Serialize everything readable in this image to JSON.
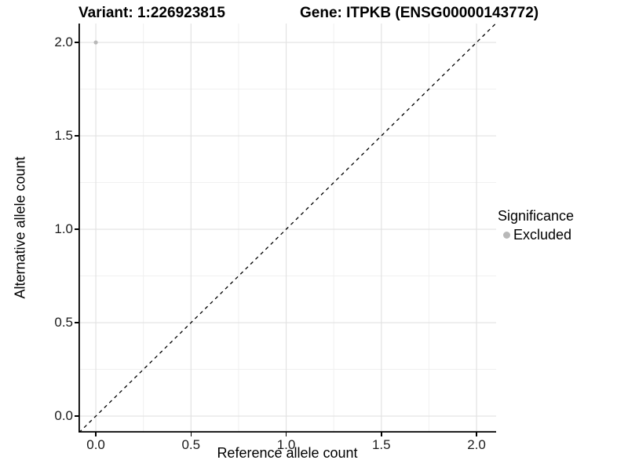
{
  "chart_data": {
    "type": "scatter",
    "title_left": "Variant: 1:226923815",
    "title_right": "Gene: ITPKB (ENSG00000143772)",
    "xlabel": "Reference allele count",
    "ylabel": "Alternative allele count",
    "xlim": [
      -0.091,
      2.103
    ],
    "ylim": [
      -0.088,
      2.101
    ],
    "x_ticks": [
      0.0,
      0.5,
      1.0,
      1.5,
      2.0
    ],
    "x_tick_labels": [
      "0.0",
      "0.5",
      "1.0",
      "1.5",
      "2.0"
    ],
    "x_minor_ticks": [
      0.25,
      0.75,
      1.25,
      1.75
    ],
    "y_ticks": [
      0.0,
      0.5,
      1.0,
      1.5,
      2.0
    ],
    "y_tick_labels": [
      "0.0",
      "0.5",
      "1.0",
      "1.5",
      "2.0"
    ],
    "y_minor_ticks": [
      0.25,
      0.75,
      1.25,
      1.75
    ],
    "grid": true,
    "points": [
      {
        "x": 0,
        "y": 2,
        "series": "Excluded"
      }
    ],
    "diagonal_line": {
      "slope": 1,
      "intercept": 0,
      "style": "dashed"
    },
    "legend": {
      "title": "Significance",
      "position": "right",
      "entries": [
        {
          "label": "Excluded",
          "color": "#b8b8b8"
        }
      ]
    }
  },
  "colors": {
    "background": "#ffffff",
    "grid_major": "#e2e2e2",
    "grid_minor": "#f0f0f0",
    "axis_line": "#000000",
    "tick_mark": "#000000",
    "dashed_line": "#000000",
    "point": "#b8b8b8",
    "text": "#000000"
  }
}
